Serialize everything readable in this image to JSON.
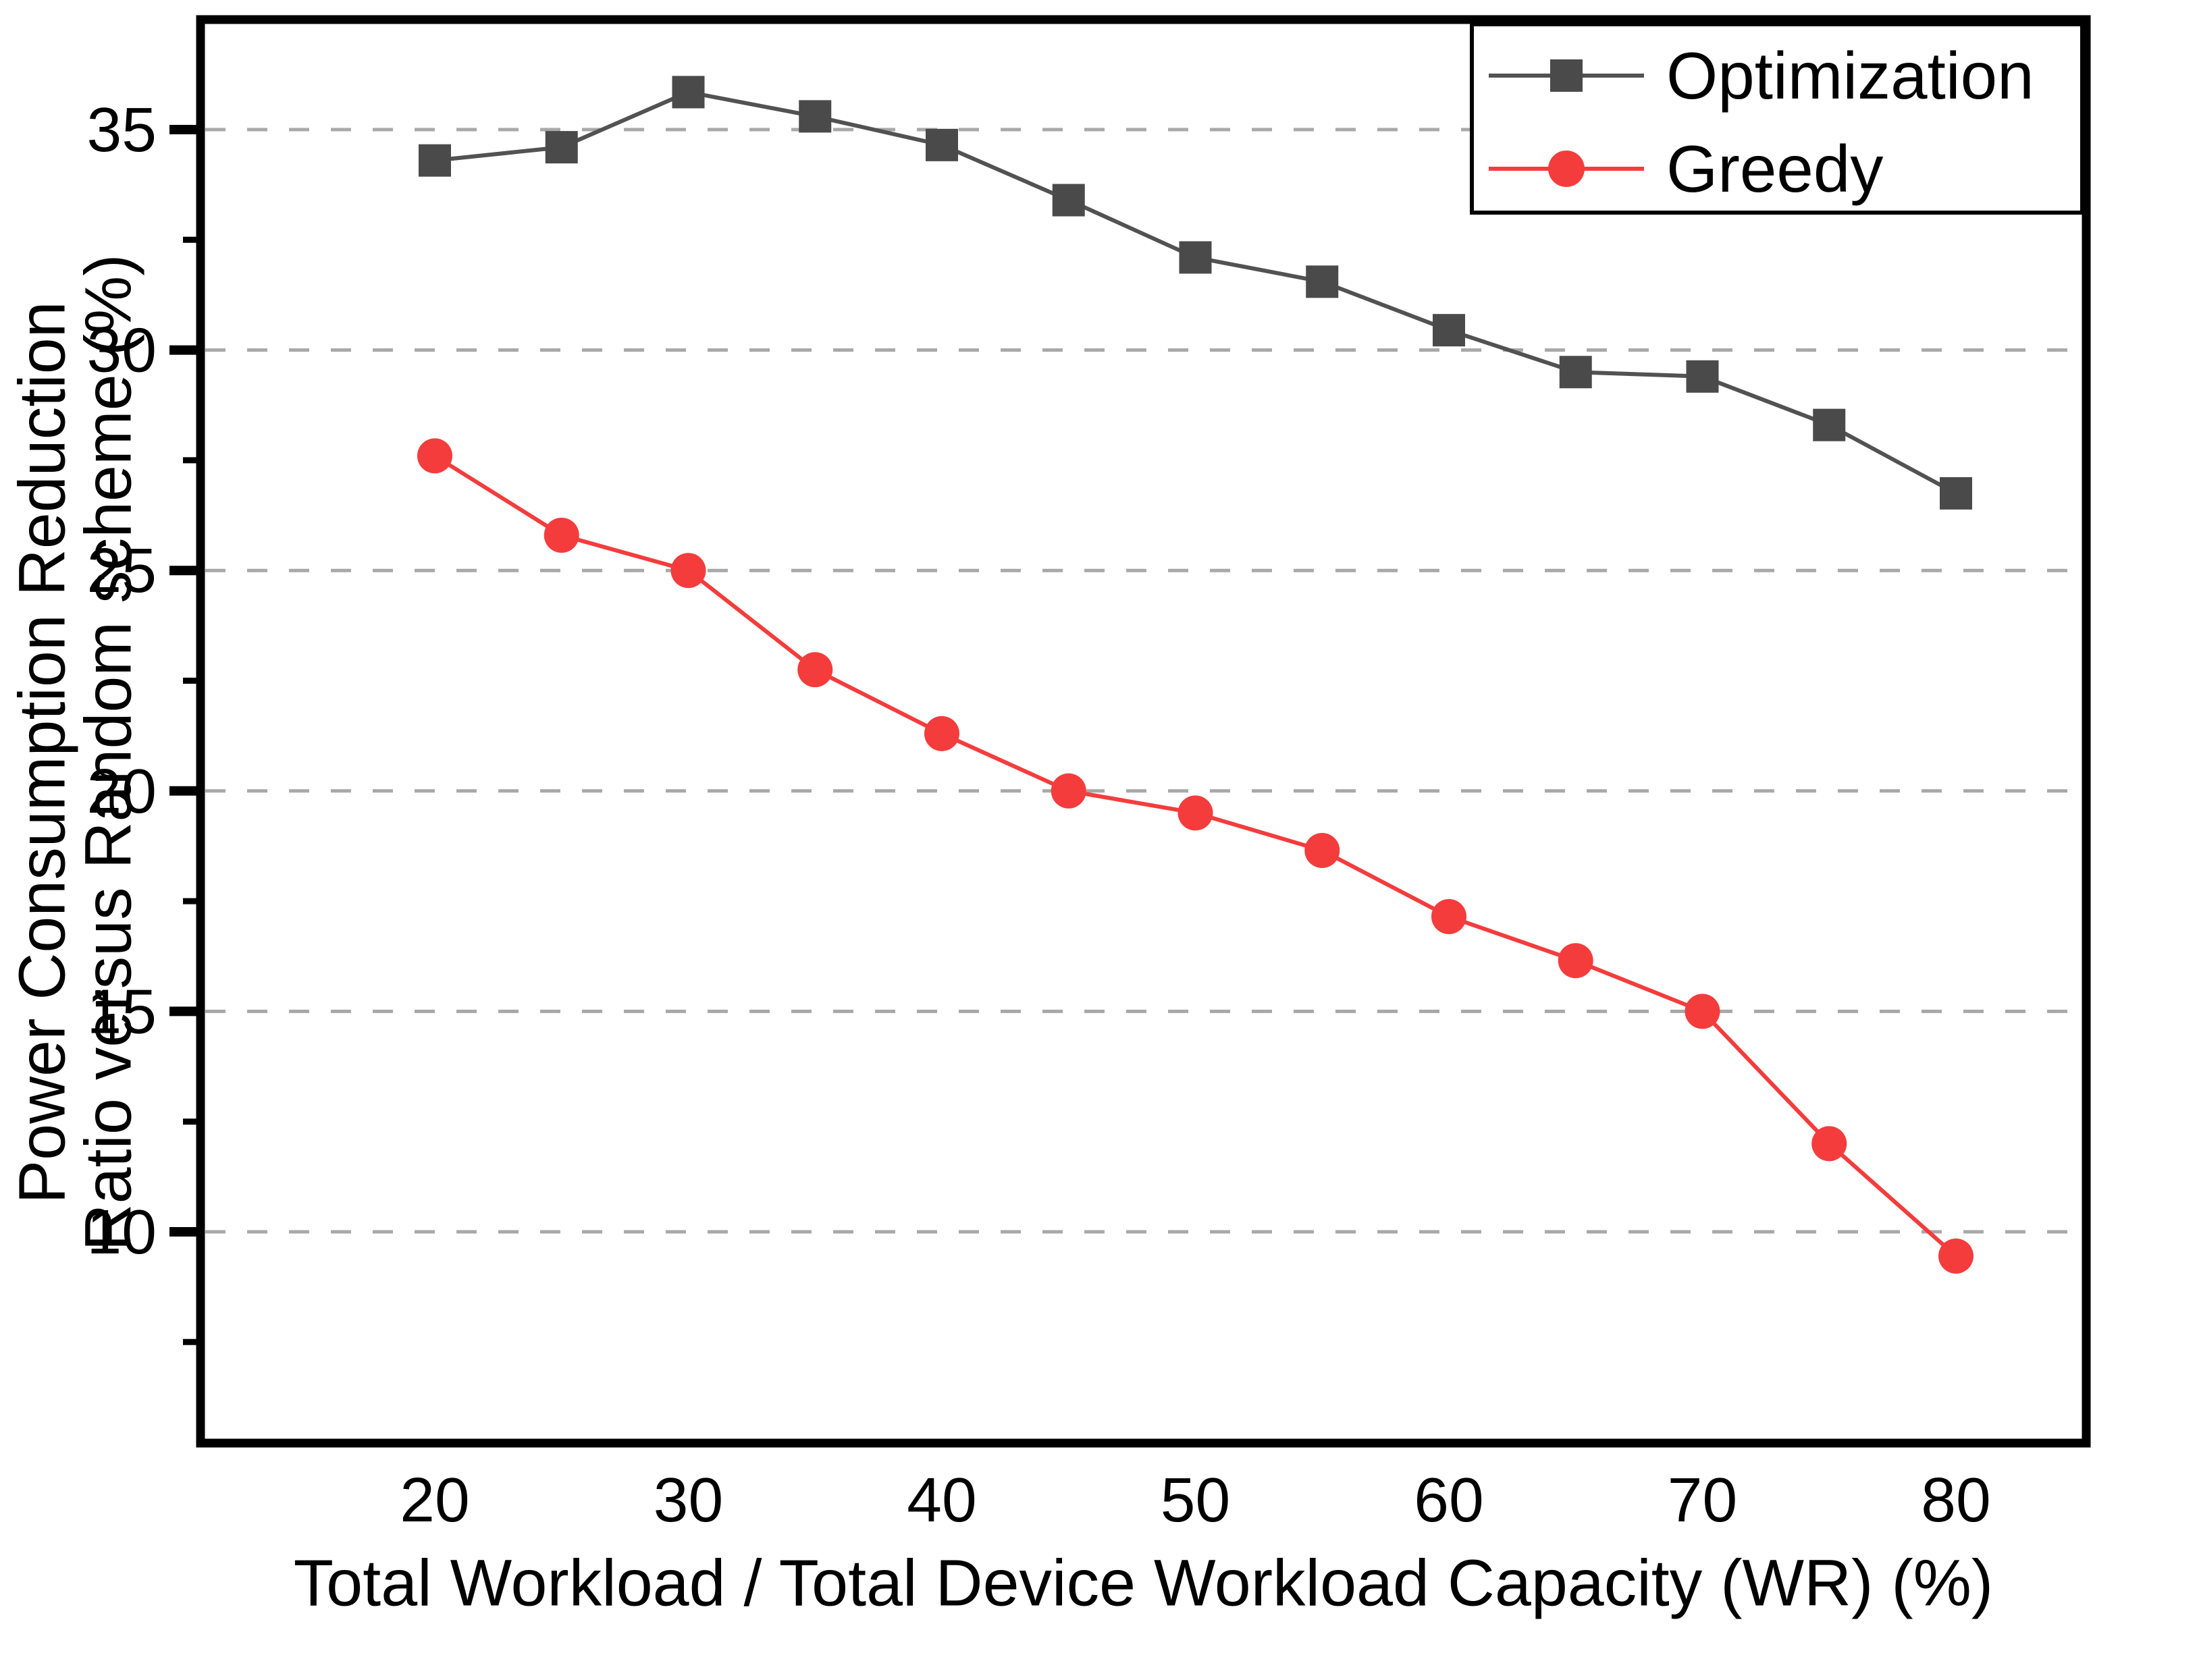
{
  "chart_data": {
    "type": "line",
    "title": "",
    "xlabel": "Total Workload / Total Device Workload Capacity (WR) (%)",
    "ylabel_lines": [
      "Power Consumption Reduction",
      "Ratio versus Random scheme (%)"
    ],
    "x": [
      20,
      25,
      30,
      35,
      40,
      45,
      50,
      55,
      60,
      65,
      70,
      75,
      80
    ],
    "series": [
      {
        "name": "Optimization",
        "marker": "square",
        "marker_color": "#4a4a4a",
        "line_color": "#525252",
        "values": [
          34.3,
          34.6,
          35.85,
          35.3,
          34.65,
          33.4,
          32.1,
          31.55,
          30.45,
          29.5,
          29.4,
          28.3,
          26.75
        ]
      },
      {
        "name": "Greedy",
        "marker": "circle",
        "marker_color": "#f43c3c",
        "line_color": "#f43c3c",
        "values": [
          27.6,
          25.8,
          25.0,
          22.75,
          21.3,
          20.0,
          19.5,
          18.65,
          17.15,
          16.15,
          15.0,
          12.0,
          9.45
        ]
      }
    ],
    "x_ticks": [
      20,
      30,
      40,
      50,
      60,
      70,
      80
    ],
    "y_ticks": [
      10,
      15,
      20,
      25,
      30,
      35
    ],
    "y_minor_ticks": [
      7.5,
      12.5,
      17.5,
      22.5,
      27.5,
      32.5
    ],
    "xlim": [
      10.8,
      85.1
    ],
    "ylim": [
      5.2,
      37.5
    ],
    "grid": "horizontal-dashed",
    "grid_color": "#a8a8a8",
    "axis_color": "#000000",
    "background_color": "#ffffff",
    "legend_position": "top-right",
    "legend_entries": [
      "Optimization",
      "Greedy"
    ]
  }
}
